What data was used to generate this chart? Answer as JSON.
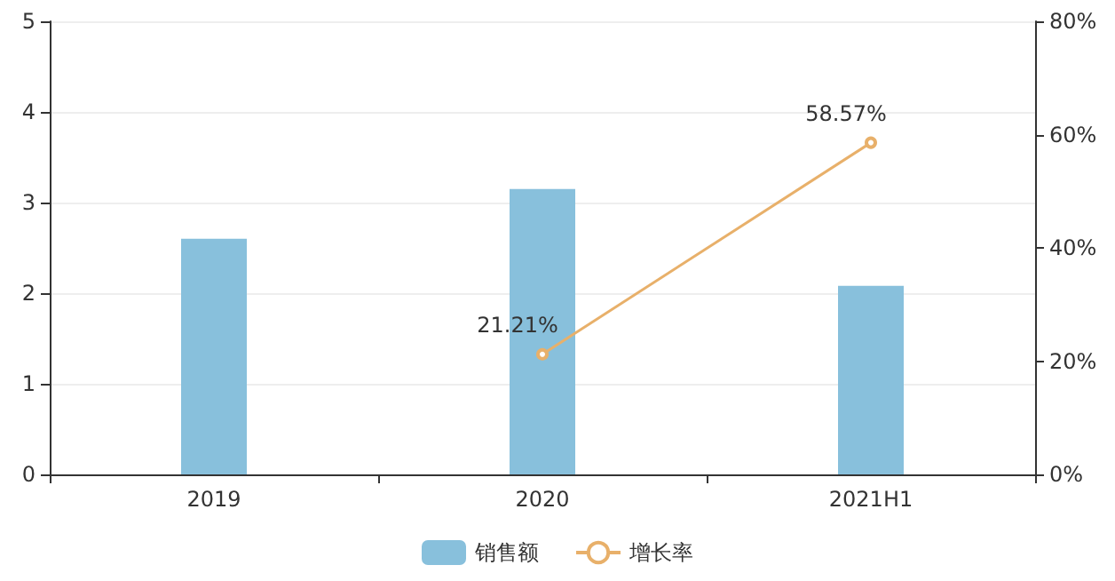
{
  "chart_data": {
    "type": "bar",
    "categories": [
      "2019",
      "2020",
      "2021H1"
    ],
    "series": [
      {
        "name": "销售额",
        "color": "#88c0dc",
        "values": [
          2.6,
          3.15,
          2.08
        ]
      },
      {
        "name": "增长率",
        "type": "line",
        "axis": "y2",
        "color": "#e8b06a",
        "values": [
          null,
          21.21,
          58.57
        ],
        "value_labels": [
          null,
          "21.21%",
          "58.57%"
        ],
        "marker": "circle"
      }
    ],
    "ylim": [
      0,
      5
    ],
    "yticks": [
      0,
      1,
      2,
      3,
      4,
      5
    ],
    "y2lim": [
      0,
      80
    ],
    "y2ticks": [
      {
        "value": 0,
        "label": "0%"
      },
      {
        "value": 20,
        "label": "20%"
      },
      {
        "value": 40,
        "label": "40%"
      },
      {
        "value": 60,
        "label": "60%"
      },
      {
        "value": 80,
        "label": "80%"
      }
    ],
    "grid": "y",
    "legend": "bottom"
  }
}
